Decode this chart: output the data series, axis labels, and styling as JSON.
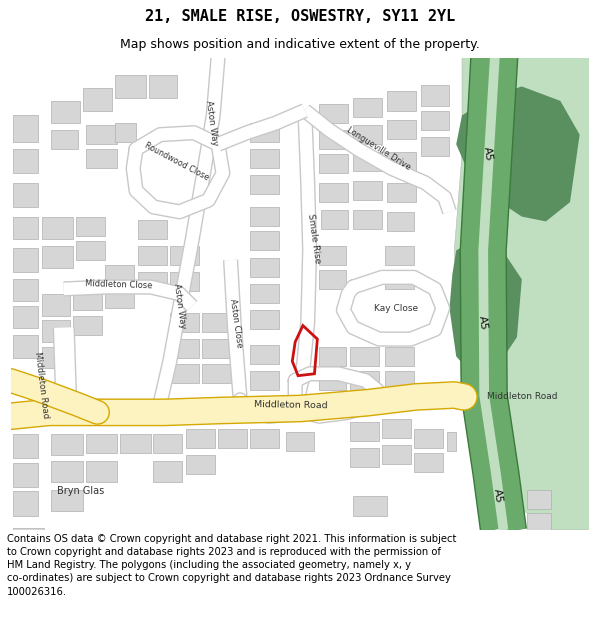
{
  "title": "21, SMALE RISE, OSWESTRY, SY11 2YL",
  "subtitle": "Map shows position and indicative extent of the property.",
  "footer": "Contains OS data © Crown copyright and database right 2021. This information is subject to Crown copyright and database rights 2023 and is reproduced with the permission of HM Land Registry. The polygons (including the associated geometry, namely x, y co-ordinates) are subject to Crown copyright and database rights 2023 Ordnance Survey 100026316.",
  "bg_color": "#ffffff",
  "map_bg": "#f2f2f2",
  "road_main_color": "#fdf3c0",
  "road_outline_color": "#d4a800",
  "a5_road_color": "#6aaa6a",
  "a5_light_color": "#c0dfc0",
  "building_color": "#d6d6d6",
  "building_outline": "#b0b0b0",
  "green_area_color": "#5a9060",
  "plot_color": "#cc1111",
  "road_label_color": "#333333",
  "map_road_color": "#ffffff",
  "map_road_outline": "#c8c8c8",
  "title_fontsize": 11,
  "subtitle_fontsize": 9,
  "footer_fontsize": 7.2
}
